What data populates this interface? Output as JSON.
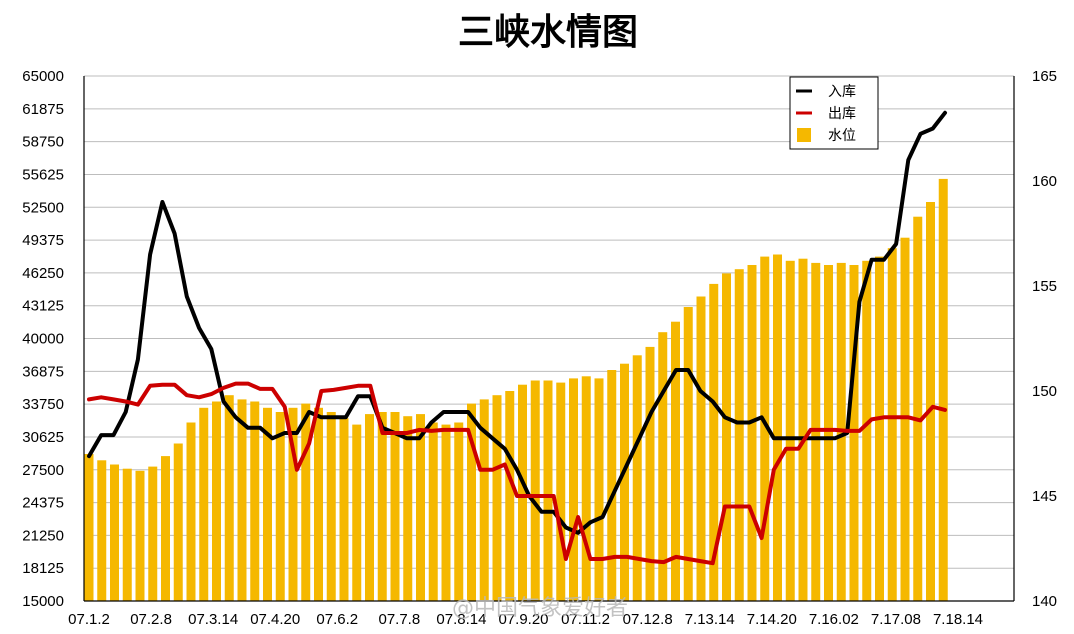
{
  "chart_data": {
    "type": "bar",
    "title": "三峡水情图",
    "left_axis": {
      "ylim": [
        15000,
        65000
      ],
      "ticks": [
        15000,
        18125,
        21250,
        24375,
        27500,
        30625,
        33750,
        36875,
        40000,
        43125,
        46250,
        49375,
        52500,
        55625,
        58750,
        61875,
        65000
      ]
    },
    "right_axis": {
      "ylim": [
        140,
        165
      ],
      "ticks": [
        140,
        145,
        150,
        155,
        160,
        165
      ]
    },
    "x_tick_labels": [
      "07.1.2",
      "07.2.8",
      "07.3.14",
      "07.4.20",
      "07.6.2",
      "07.7.8",
      "07.8.14",
      "07.9.20",
      "07.11.2",
      "07.12.8",
      "7.13.14",
      "7.14.20",
      "7.16.02",
      "7.17.08",
      "7.18.14"
    ],
    "grid": true,
    "legend": {
      "position": "top-right",
      "items": [
        {
          "label": "入库",
          "color": "#000000",
          "kind": "line"
        },
        {
          "label": "出库",
          "color": "#cc0000",
          "kind": "line"
        },
        {
          "label": "水位",
          "color": "#f5b800",
          "kind": "bar"
        }
      ]
    },
    "series": [
      {
        "name": "水位",
        "axis": "right",
        "type": "bar",
        "color": "#f5b800",
        "values": [
          147.0,
          146.7,
          146.5,
          146.3,
          146.2,
          146.4,
          146.9,
          147.5,
          148.5,
          149.2,
          149.5,
          149.8,
          149.6,
          149.5,
          149.2,
          149.0,
          149.2,
          149.4,
          149.2,
          149.0,
          148.7,
          148.4,
          148.9,
          149.0,
          149.0,
          148.8,
          148.9,
          148.5,
          148.4,
          148.5,
          149.4,
          149.6,
          149.8,
          150.0,
          150.3,
          150.5,
          150.5,
          150.4,
          150.6,
          150.7,
          150.6,
          151.0,
          151.3,
          151.7,
          152.1,
          152.8,
          153.3,
          154.0,
          154.5,
          155.1,
          155.6,
          155.8,
          156.0,
          156.4,
          156.5,
          156.2,
          156.3,
          156.1,
          156.0,
          156.1,
          156.0,
          156.2,
          156.4,
          156.8,
          157.3,
          158.3,
          159.0,
          160.1
        ]
      },
      {
        "name": "入库",
        "axis": "left",
        "type": "line",
        "color": "#000000",
        "values": [
          28800,
          30800,
          30800,
          33000,
          38000,
          48000,
          53000,
          50000,
          44000,
          41000,
          39000,
          34000,
          32500,
          31500,
          31500,
          30500,
          31000,
          31000,
          33000,
          32500,
          32500,
          32500,
          34500,
          34500,
          31500,
          31000,
          30500,
          30500,
          32000,
          33000,
          33000,
          33000,
          31500,
          30500,
          29500,
          27500,
          25000,
          23500,
          23500,
          22000,
          21500,
          22500,
          23000,
          25500,
          28000,
          30500,
          33000,
          35000,
          37000,
          37000,
          35000,
          34000,
          32500,
          32000,
          32000,
          32500,
          30500,
          30500,
          30500,
          30500,
          30500,
          30500,
          31000,
          43500,
          47500,
          47500,
          49000,
          57000,
          59500,
          60000,
          61500
        ]
      },
      {
        "name": "出库",
        "axis": "left",
        "type": "line",
        "color": "#cc0000",
        "values": [
          34200,
          34400,
          34200,
          34000,
          33700,
          35500,
          35600,
          35600,
          34600,
          34400,
          34700,
          35300,
          35700,
          35700,
          35200,
          35200,
          33500,
          27500,
          30000,
          35000,
          35100,
          35300,
          35500,
          35500,
          31000,
          31000,
          31000,
          31300,
          31200,
          31300,
          31300,
          31300,
          27500,
          27500,
          28000,
          25000,
          25000,
          25000,
          25000,
          19000,
          23000,
          19000,
          19000,
          19200,
          19200,
          19000,
          18800,
          18700,
          19200,
          19000,
          18800,
          18600,
          24000,
          24000,
          24000,
          21000,
          27500,
          29500,
          29500,
          31300,
          31300,
          31300,
          31200,
          31200,
          32300,
          32500,
          32500,
          32500,
          32200,
          33500,
          33200
        ]
      }
    ]
  },
  "watermark": "@中国气象爱好者"
}
